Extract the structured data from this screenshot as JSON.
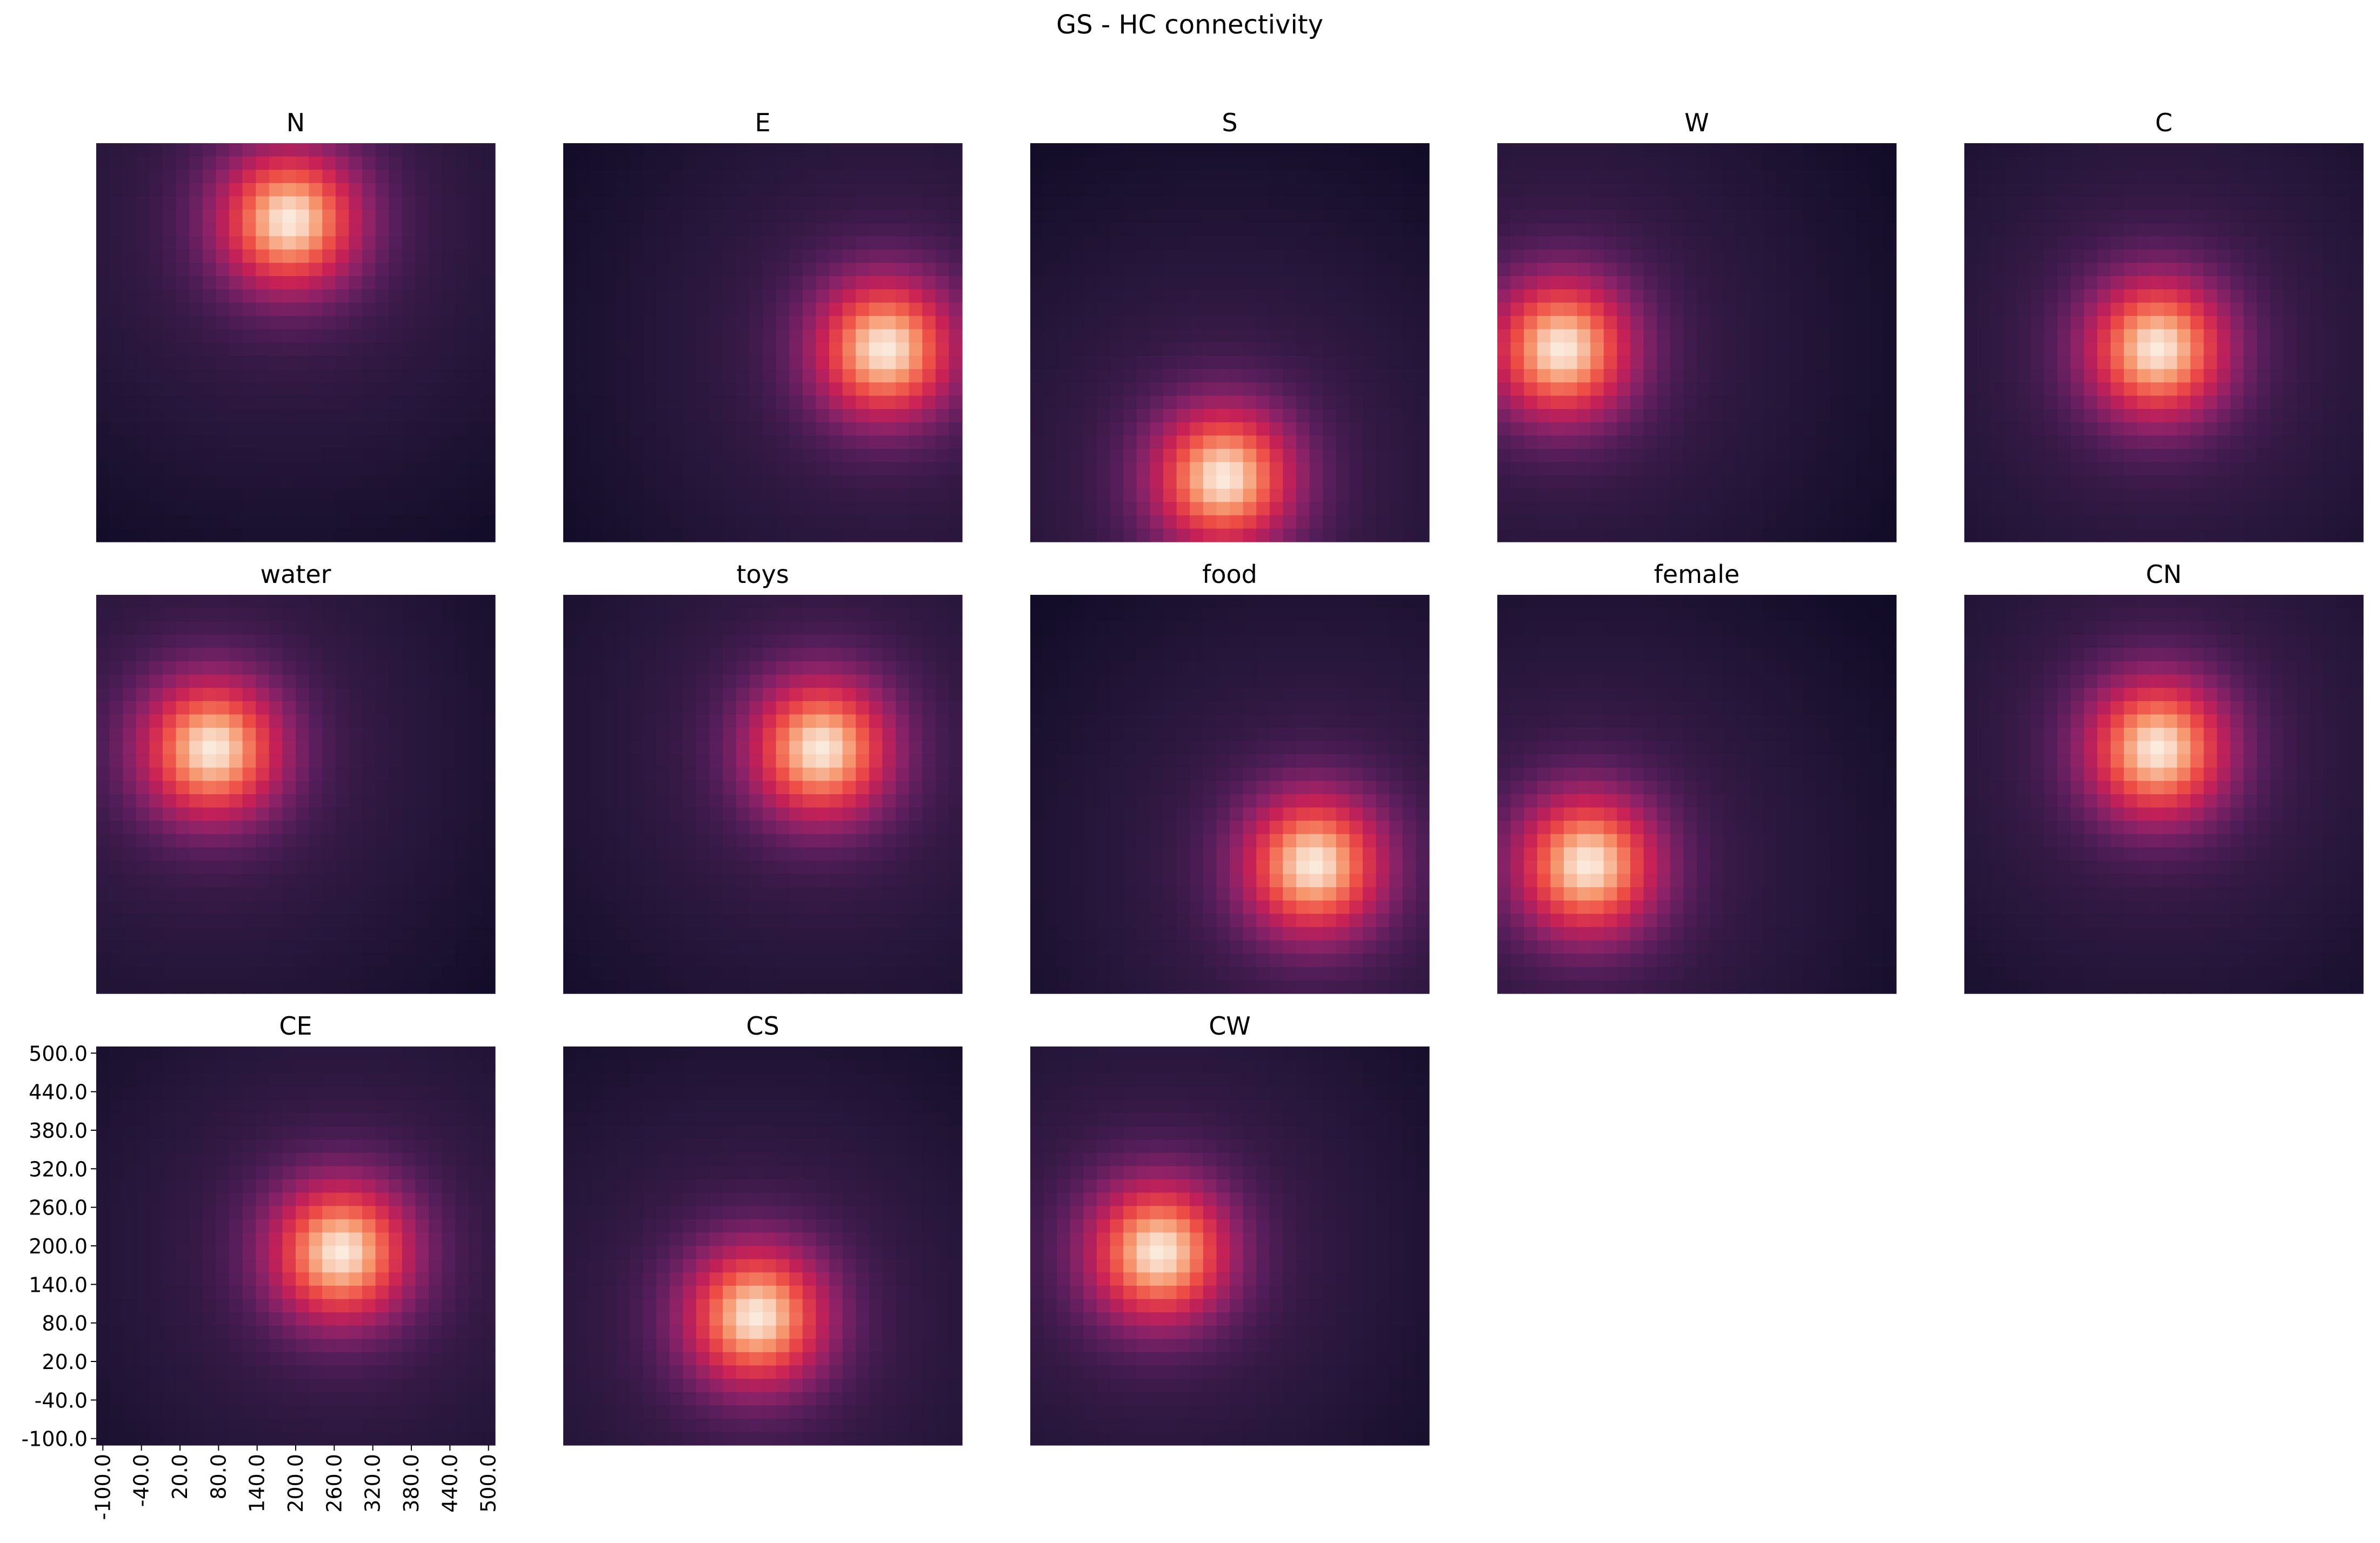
{
  "figure_title": "GS - HC connectivity",
  "colormap": "rocket",
  "chart_data": {
    "type": "heatmap",
    "title": "GS - HC connectivity",
    "grid": false,
    "legend": "none",
    "layout": {
      "rows": 3,
      "cols": 5,
      "panel_count": 13
    },
    "grid_size": [
      30,
      30
    ],
    "x_range": [
      -100,
      520
    ],
    "y_range": [
      -100,
      520
    ],
    "x_ticks": [
      "-100.0",
      "-40.0",
      "20.0",
      "80.0",
      "140.0",
      "200.0",
      "260.0",
      "320.0",
      "380.0",
      "440.0",
      "500.0"
    ],
    "y_ticks": [
      "500.0",
      "440.0",
      "380.0",
      "320.0",
      "260.0",
      "200.0",
      "140.0",
      "80.0",
      "20.0",
      "-40.0",
      "-100.0"
    ],
    "tick_panel": "CE",
    "kernel_width": 4,
    "panels": [
      {
        "title": "N",
        "peak": [
          200,
          400
        ]
      },
      {
        "title": "E",
        "peak": [
          400,
          200
        ]
      },
      {
        "title": "S",
        "peak": [
          200,
          0
        ]
      },
      {
        "title": "W",
        "peak": [
          0,
          200
        ]
      },
      {
        "title": "C",
        "peak": [
          200,
          200
        ]
      },
      {
        "title": "water",
        "peak": [
          80,
          280
        ]
      },
      {
        "title": "toys",
        "peak": [
          300,
          280
        ]
      },
      {
        "title": "food",
        "peak": [
          340,
          100
        ]
      },
      {
        "title": "female",
        "peak": [
          40,
          100
        ]
      },
      {
        "title": "CN",
        "peak": [
          200,
          280
        ]
      },
      {
        "title": "CE",
        "peak": [
          280,
          200
        ]
      },
      {
        "title": "CS",
        "peak": [
          200,
          100
        ]
      },
      {
        "title": "CW",
        "peak": [
          100,
          200
        ]
      }
    ]
  }
}
